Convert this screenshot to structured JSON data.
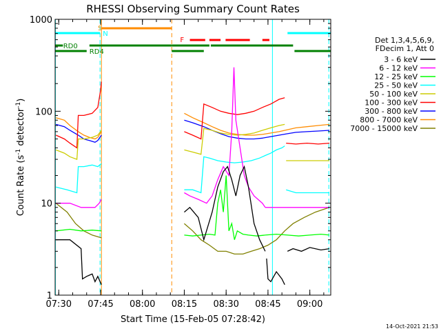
{
  "chart_data": {
    "type": "line",
    "title": "RHESSI Observing Summary Count Rates",
    "xlabel": "Start Time (15-Feb-05 07:28:42)",
    "ylabel_main": "Count Rate (s",
    "ylabel_sup1": "-1",
    "ylabel_mid": " detector",
    "ylabel_sup2": "-1",
    "ylabel_end": ")",
    "y_scale": "log",
    "ylim": [
      1,
      1000
    ],
    "xlim_minutes": [
      -1.3,
      97.5
    ],
    "x_ticks": [
      {
        "t": 0,
        "label": "07:30"
      },
      {
        "t": 15,
        "label": "07:45"
      },
      {
        "t": 30,
        "label": "08:00"
      },
      {
        "t": 45,
        "label": "08:15"
      },
      {
        "t": 60,
        "label": "08:30"
      },
      {
        "t": 75,
        "label": "08:45"
      },
      {
        "t": 90,
        "label": "09:00"
      }
    ],
    "y_ticks": [
      {
        "v": 1,
        "label": "1"
      },
      {
        "v": 10,
        "label": "10"
      },
      {
        "v": 100,
        "label": "100"
      },
      {
        "v": 1000,
        "label": "1000"
      }
    ],
    "timestamp": "14-Oct-2021 21:53",
    "legend_header": [
      "Det 1,3,4,5,6,9,",
      "FDecim 1, Att 0"
    ],
    "series": [
      {
        "name": "3 - 6 keV",
        "color": "#000000",
        "segments": [
          {
            "t": [
              -1,
              4,
              8,
              8.5,
              10,
              12,
              13,
              14,
              15.3
            ],
            "v": [
              4,
              4,
              3.2,
              1.5,
              1.6,
              1.7,
              1.4,
              1.6,
              1.3
            ]
          },
          {
            "t": [
              45,
              47,
              50,
              52,
              55,
              57,
              59,
              60.5,
              62,
              63.5,
              65,
              66.5,
              68,
              70,
              72,
              74
            ],
            "v": [
              8,
              9,
              7,
              4,
              8,
              15,
              22,
              25,
              18,
              12,
              20,
              25,
              15,
              6,
              4,
              3
            ]
          },
          {
            "t": [
              74.5,
              75,
              76,
              78,
              80,
              81
            ],
            "v": [
              2.5,
              1.5,
              1.4,
              1.8,
              1.5,
              1.3
            ]
          },
          {
            "t": [
              82,
              84,
              87,
              90,
              94,
              97
            ],
            "v": [
              3,
              3.2,
              3,
              3.3,
              3.1,
              3.2
            ]
          }
        ]
      },
      {
        "name": "6 - 12 keV",
        "color": "#ff00ff",
        "segments": [
          {
            "t": [
              -1,
              4,
              8,
              9,
              11,
              13,
              14.5,
              15.3
            ],
            "v": [
              10,
              10,
              9,
              9,
              9,
              9,
              10,
              11
            ]
          },
          {
            "t": [
              45,
              47,
              50,
              53,
              55,
              57,
              59,
              61,
              62,
              62.8,
              63.5,
              65,
              66.5,
              68,
              70,
              73,
              74
            ],
            "v": [
              13,
              12,
              11,
              10,
              12,
              18,
              25,
              20,
              60,
              300,
              80,
              40,
              20,
              15,
              12,
              10,
              9
            ]
          },
          {
            "t": [
              74,
              78,
              81,
              84,
              87,
              90,
              94,
              97
            ],
            "v": [
              9,
              9,
              9,
              9,
              9,
              9,
              9,
              9
            ]
          }
        ]
      },
      {
        "name": "12 - 25 keV",
        "color": "#00ff00",
        "segments": [
          {
            "t": [
              -1,
              4,
              8,
              12,
              15.3
            ],
            "v": [
              5,
              5.2,
              5,
              5.1,
              5
            ]
          },
          {
            "t": [
              45,
              48,
              51,
              54,
              56,
              57,
              58,
              59,
              60,
              61,
              62,
              63,
              64,
              66,
              68,
              71,
              74
            ],
            "v": [
              4.5,
              4.4,
              4.5,
              4.6,
              4.5,
              10,
              14,
              8,
              20,
              5,
              6,
              4,
              5,
              4.6,
              4.5,
              4.4,
              4.5
            ]
          },
          {
            "t": [
              74,
              78,
              82,
              86,
              90,
              94,
              97
            ],
            "v": [
              4.5,
              4.6,
              4.5,
              4.4,
              4.5,
              4.6,
              4.5
            ]
          }
        ]
      },
      {
        "name": "25 - 50 keV",
        "color": "#00ffff",
        "segments": [
          {
            "t": [
              -1,
              3,
              6.5,
              7,
              9,
              12,
              14,
              15.3
            ],
            "v": [
              15,
              14,
              13,
              25,
              25,
              26,
              25,
              27
            ]
          },
          {
            "t": [
              45,
              48,
              51,
              52,
              54,
              57,
              60,
              63,
              66,
              69,
              72,
              74,
              76,
              78,
              80,
              81
            ],
            "v": [
              14,
              14,
              13,
              32,
              31,
              29,
              28,
              27.5,
              28,
              29,
              31,
              33,
              35,
              38,
              40,
              42
            ]
          },
          {
            "t": [
              81.5,
              85,
              89,
              93,
              97
            ],
            "v": [
              14,
              13,
              13,
              13,
              13
            ]
          }
        ]
      },
      {
        "name": "50 - 100 keV",
        "color": "#cccc00",
        "segments": [
          {
            "t": [
              -1,
              2,
              4,
              6.5,
              7,
              9,
              12,
              14,
              15.3
            ],
            "v": [
              38,
              35,
              32,
              30,
              50,
              50,
              52,
              55,
              62
            ]
          },
          {
            "t": [
              45,
              48,
              51,
              52,
              55,
              58,
              61,
              64,
              67,
              70,
              73,
              76,
              79,
              81
            ],
            "v": [
              38,
              36,
              34,
              65,
              62,
              58,
              56,
              55,
              56,
              58,
              62,
              66,
              70,
              72
            ]
          },
          {
            "t": [
              81.5,
              85,
              89,
              93,
              97
            ],
            "v": [
              29,
              29,
              29,
              29,
              29
            ]
          }
        ]
      },
      {
        "name": "100 - 300 keV",
        "color": "#ff0000",
        "segments": [
          {
            "t": [
              -1,
              2,
              4,
              6.5,
              7,
              9,
              12,
              14,
              15,
              15.3
            ],
            "v": [
              55,
              50,
              45,
              40,
              90,
              90,
              95,
              110,
              170,
              210
            ]
          },
          {
            "t": [
              45,
              48,
              51,
              52,
              55,
              58,
              61,
              64,
              67,
              70,
              73,
              76,
              79,
              81
            ],
            "v": [
              60,
              55,
              50,
              120,
              110,
              100,
              95,
              92,
              95,
              100,
              110,
              120,
              135,
              140
            ]
          },
          {
            "t": [
              81.5,
              85,
              89,
              93,
              97
            ],
            "v": [
              45,
              44,
              45,
              44,
              45
            ]
          }
        ]
      },
      {
        "name": "300 - 800 keV",
        "color": "#0000ff",
        "segments": [
          {
            "t": [
              -1,
              2,
              4,
              7,
              9,
              11,
              13,
              14,
              15.3
            ],
            "v": [
              72,
              68,
              62,
              55,
              50,
              48,
              46,
              48,
              55
            ]
          },
          {
            "t": [
              45,
              48,
              52,
              55,
              58,
              61,
              64,
              67,
              70,
              73,
              76,
              79,
              82,
              85,
              89,
              93,
              97
            ],
            "v": [
              80,
              75,
              68,
              62,
              57,
              53,
              51,
              50,
              50,
              51,
              53,
              55,
              57,
              59,
              60,
              61,
              62
            ]
          }
        ]
      },
      {
        "name": "800 - 7000 keV",
        "color": "#ff8c00",
        "segments": [
          {
            "t": [
              -1,
              2,
              4,
              7,
              9,
              11,
              13,
              14,
              15.3
            ],
            "v": [
              85,
              80,
              70,
              60,
              55,
              52,
              50,
              52,
              60
            ]
          },
          {
            "t": [
              45,
              48,
              52,
              55,
              58,
              61,
              64,
              67,
              70,
              73,
              76,
              79,
              82,
              85,
              89,
              93,
              97
            ],
            "v": [
              95,
              85,
              75,
              68,
              62,
              58,
              56,
              55,
              55,
              56,
              58,
              60,
              63,
              66,
              68,
              70,
              72
            ]
          }
        ]
      },
      {
        "name": "7000 - 15000 keV",
        "color": "#808000",
        "segments": [
          {
            "t": [
              -1,
              3,
              6,
              9,
              12,
              15.3
            ],
            "v": [
              10,
              8,
              6,
              5,
              4.5,
              4.2
            ]
          },
          {
            "t": [
              45,
              48,
              51,
              54,
              57,
              60,
              63,
              66,
              69,
              72,
              75,
              78,
              81,
              84,
              88,
              92,
              97
            ],
            "v": [
              6,
              5,
              4,
              3.5,
              3,
              3,
              2.8,
              2.8,
              3,
              3.2,
              3.5,
              4,
              5,
              6,
              7,
              8,
              9
            ]
          }
        ]
      }
    ],
    "annotations": {
      "saa_label": "S",
      "night_label": "N",
      "flare_label": "F",
      "rd0_label": "RD0",
      "rd4_label": "RD4"
    },
    "attenuator_bars": [
      {
        "name": "saa",
        "color": "#ff8c00",
        "t0": 15.3,
        "t1": 40.5
      },
      {
        "name": "night-left",
        "color": "#00ffff",
        "t0": -1.3,
        "t1": 14.8
      },
      {
        "name": "night-right",
        "color": "#00ffff",
        "t0": 82,
        "t1": 97.5
      },
      {
        "name": "flare",
        "color": "#ff0000",
        "segments": [
          [
            47,
            52.5
          ],
          [
            54,
            58
          ],
          [
            59.8,
            68.5
          ],
          [
            73,
            75.5
          ]
        ]
      },
      {
        "name": "rd0",
        "color": "#008000",
        "segments": [
          [
            -1.3,
            1.5
          ],
          [
            11,
            40.5
          ],
          [
            40.5,
            54
          ],
          [
            54.5,
            84
          ]
        ]
      },
      {
        "name": "rd4",
        "color": "#008000",
        "segments": [
          [
            -1.3,
            10
          ],
          [
            40.5,
            52
          ],
          [
            84.5,
            97.5
          ]
        ]
      }
    ],
    "vertical_markers": [
      {
        "t": 15.3,
        "color": "#ff8c00",
        "style": "solid"
      },
      {
        "t": 40.5,
        "color": "#ff8c00",
        "style": "dashed"
      },
      {
        "t": -1.2,
        "color": "#00ffff",
        "style": "solid"
      },
      {
        "t": 14.8,
        "color": "#00ffff",
        "style": "dashed"
      },
      {
        "t": 76.6,
        "color": "#00ffff",
        "style": "solid"
      },
      {
        "t": 96.8,
        "color": "#00ffff",
        "style": "dashed"
      }
    ]
  }
}
